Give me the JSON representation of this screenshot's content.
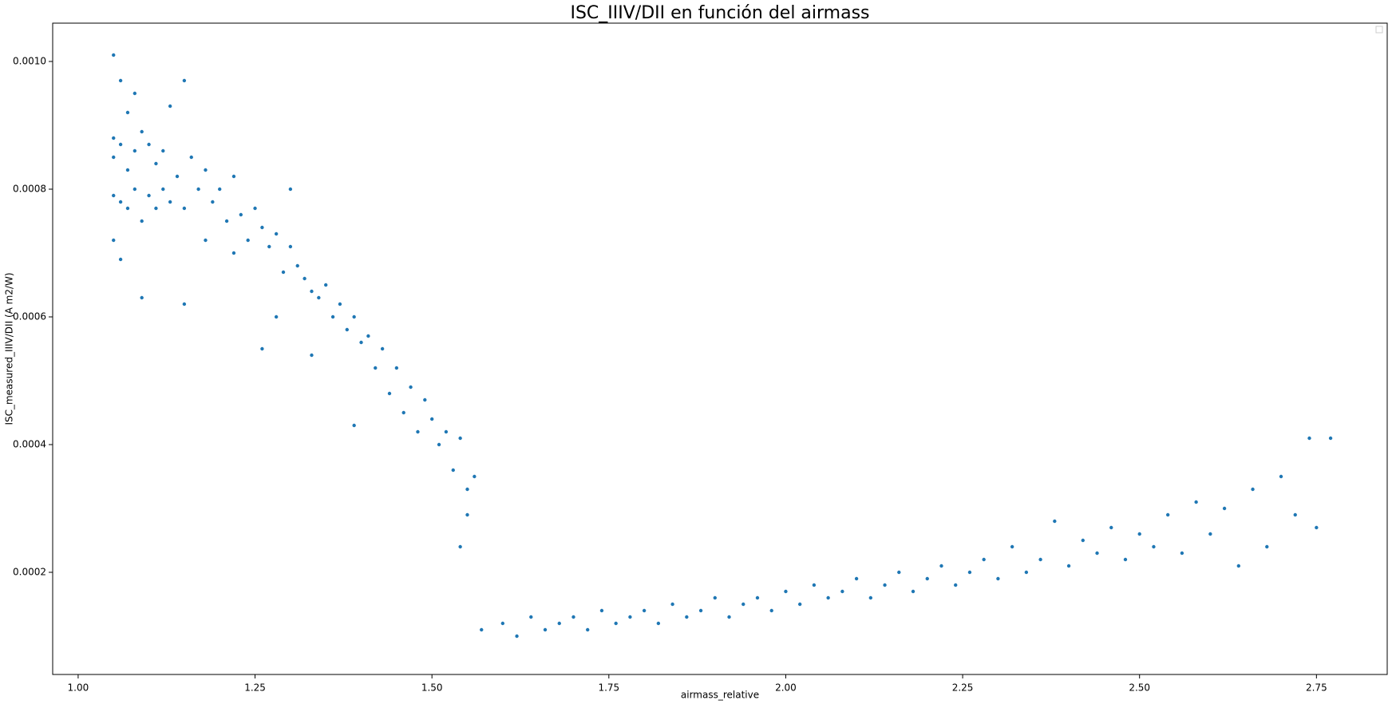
{
  "chart_data": {
    "type": "scatter",
    "title": "ISC_IIIV/DII en función del airmass",
    "xlabel": "airmass_relative",
    "ylabel": "ISC_measured_IIIV/DII (A m2/W)",
    "color": "#1f77b4",
    "legend": "upper right",
    "xlim": [
      0.964,
      2.85
    ],
    "ylim": [
      4e-05,
      0.00106
    ],
    "xticks": [
      {
        "value": 1,
        "label": "1.00"
      },
      1.25,
      {
        "value": 1.5,
        "label": "1.50"
      },
      1.75,
      {
        "value": 2,
        "label": "2.00"
      },
      2.25,
      {
        "value": 2.5,
        "label": "2.50"
      },
      2.75
    ],
    "yticks": [
      0.0002,
      0.0004,
      0.0006,
      0.0008,
      {
        "value": 0.001,
        "label": "0.0010"
      }
    ],
    "x": [
      1.05,
      1.05,
      1.05,
      1.05,
      1.05,
      1.06,
      1.06,
      1.06,
      1.06,
      1.07,
      1.07,
      1.07,
      1.08,
      1.08,
      1.08,
      1.09,
      1.09,
      1.1,
      1.1,
      1.11,
      1.11,
      1.12,
      1.12,
      1.13,
      1.13,
      1.14,
      1.15,
      1.15,
      1.16,
      1.17,
      1.18,
      1.18,
      1.19,
      1.2,
      1.21,
      1.22,
      1.22,
      1.23,
      1.24,
      1.25,
      1.26,
      1.27,
      1.28,
      1.29,
      1.3,
      1.31,
      1.32,
      1.33,
      1.34,
      1.35,
      1.36,
      1.37,
      1.38,
      1.39,
      1.4,
      1.41,
      1.42,
      1.43,
      1.44,
      1.45,
      1.46,
      1.47,
      1.48,
      1.49,
      1.5,
      1.51,
      1.52,
      1.53,
      1.54,
      1.55,
      1.56,
      1.09,
      1.15,
      1.26,
      1.28,
      1.3,
      1.33,
      1.39,
      1.54,
      1.55,
      1.57,
      1.6,
      1.62,
      1.64,
      1.66,
      1.68,
      1.7,
      1.72,
      1.74,
      1.76,
      1.78,
      1.8,
      1.82,
      1.84,
      1.86,
      1.88,
      1.9,
      1.92,
      1.94,
      1.96,
      1.98,
      2.0,
      2.02,
      2.04,
      2.06,
      2.08,
      2.1,
      2.12,
      2.14,
      2.16,
      2.18,
      2.2,
      2.22,
      2.24,
      2.26,
      2.28,
      2.3,
      2.32,
      2.34,
      2.36,
      2.38,
      2.4,
      2.42,
      2.44,
      2.46,
      2.48,
      2.5,
      2.52,
      2.54,
      2.56,
      2.58,
      2.6,
      2.62,
      2.64,
      2.66,
      2.68,
      2.7,
      2.72,
      2.74,
      2.75,
      2.77
    ],
    "values": [
      0.00101,
      0.00088,
      0.00085,
      0.00079,
      0.00072,
      0.00097,
      0.00087,
      0.00078,
      0.00069,
      0.00092,
      0.00083,
      0.00077,
      0.00095,
      0.00086,
      0.0008,
      0.00089,
      0.00075,
      0.00087,
      0.00079,
      0.00084,
      0.00077,
      0.00086,
      0.0008,
      0.00093,
      0.00078,
      0.00082,
      0.00097,
      0.00077,
      0.00085,
      0.0008,
      0.00083,
      0.00072,
      0.00078,
      0.0008,
      0.00075,
      0.00082,
      0.0007,
      0.00076,
      0.00072,
      0.00077,
      0.00074,
      0.00071,
      0.00073,
      0.00067,
      0.00071,
      0.00068,
      0.00066,
      0.00064,
      0.00063,
      0.00065,
      0.0006,
      0.00062,
      0.00058,
      0.0006,
      0.00056,
      0.00057,
      0.00052,
      0.00055,
      0.00048,
      0.00052,
      0.00045,
      0.00049,
      0.00042,
      0.00047,
      0.00044,
      0.0004,
      0.00042,
      0.00036,
      0.00041,
      0.00033,
      0.00035,
      0.00063,
      0.00062,
      0.00055,
      0.0006,
      0.0008,
      0.00054,
      0.00043,
      0.00024,
      0.00029,
      0.00011,
      0.00012,
      0.0001,
      0.00013,
      0.00011,
      0.00012,
      0.00013,
      0.00011,
      0.00014,
      0.00012,
      0.00013,
      0.00014,
      0.00012,
      0.00015,
      0.00013,
      0.00014,
      0.00016,
      0.00013,
      0.00015,
      0.00016,
      0.00014,
      0.00017,
      0.00015,
      0.00018,
      0.00016,
      0.00017,
      0.00019,
      0.00016,
      0.00018,
      0.0002,
      0.00017,
      0.00019,
      0.00021,
      0.00018,
      0.0002,
      0.00022,
      0.00019,
      0.00024,
      0.0002,
      0.00022,
      0.00028,
      0.00021,
      0.00025,
      0.00023,
      0.00027,
      0.00022,
      0.00026,
      0.00024,
      0.00029,
      0.00023,
      0.00031,
      0.00026,
      0.0003,
      0.00021,
      0.00033,
      0.00024,
      0.00035,
      0.00029,
      0.00041,
      0.00027,
      0.00041
    ]
  }
}
